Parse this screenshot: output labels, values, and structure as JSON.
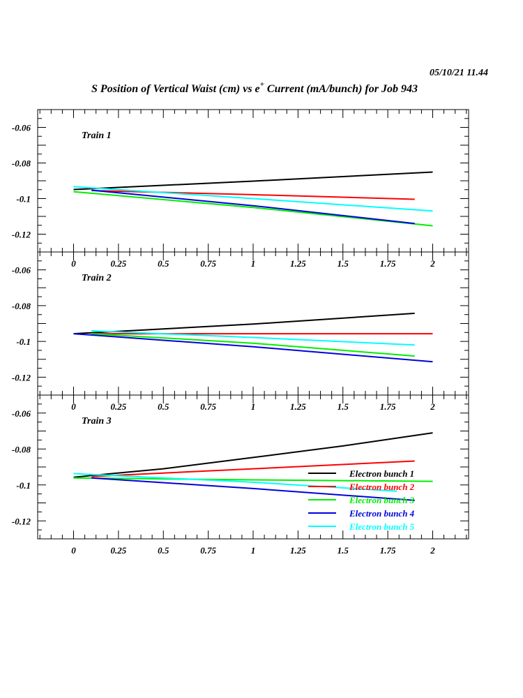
{
  "chart_data": {
    "type": "line",
    "title": "S Position of Vertical Waist (cm) vs e",
    "title_sup": "+",
    "title_rest": " Current (mA/bunch) for Job 943",
    "timestamp": "05/10/21   11.44",
    "xlim": [
      -0.2,
      2.2
    ],
    "ylim": [
      -0.13,
      -0.05
    ],
    "x_ticks": [
      "0",
      "0.25",
      "0.5",
      "0.75",
      "1",
      "1.25",
      "1.5",
      "1.75",
      "2"
    ],
    "x_tick_values": [
      0,
      0.25,
      0.5,
      0.75,
      1,
      1.25,
      1.5,
      1.75,
      2
    ],
    "y_ticks": [
      "-0.06",
      "-0.08",
      "-0.1",
      "-0.12"
    ],
    "y_tick_values": [
      -0.06,
      -0.08,
      -0.1,
      -0.12
    ],
    "grid": false,
    "legend": {
      "placement": "bottom-right of Train 3 panel",
      "entries": [
        "Electron bunch 1",
        "Electron bunch 2",
        "Electron bunch 3",
        "Electron bunch 4",
        "Electron bunch 5"
      ]
    },
    "series_colors": [
      "#000000",
      "#ff0000",
      "#00ee00",
      "#0000dd",
      "#00ffff"
    ],
    "panels": [
      {
        "label": "Train 1",
        "series": [
          {
            "name": "Electron bunch 1",
            "x": [
              0,
              1,
              2
            ],
            "y": [
              -0.0949,
              -0.0902,
              -0.0851
            ]
          },
          {
            "name": "Electron bunch 2",
            "x": [
              0.1,
              1,
              1.9
            ],
            "y": [
              -0.0955,
              -0.0978,
              -0.1004
            ]
          },
          {
            "name": "Electron bunch 3",
            "x": [
              0,
              1,
              2
            ],
            "y": [
              -0.0961,
              -0.105,
              -0.1153
            ]
          },
          {
            "name": "Electron bunch 4",
            "x": [
              0.1,
              1,
              1.9
            ],
            "y": [
              -0.0953,
              -0.104,
              -0.114
            ]
          },
          {
            "name": "Electron bunch 5",
            "x": [
              0,
              1,
              2
            ],
            "y": [
              -0.0933,
              -0.1,
              -0.107
            ]
          }
        ]
      },
      {
        "label": "Train 2",
        "series": [
          {
            "name": "Electron bunch 1",
            "x": [
              0,
              1,
              1.9
            ],
            "y": [
              -0.0957,
              -0.0903,
              -0.0843
            ]
          },
          {
            "name": "Electron bunch 2",
            "x": [
              0.1,
              1,
              2
            ],
            "y": [
              -0.0957,
              -0.0957,
              -0.0957
            ]
          },
          {
            "name": "Electron bunch 3",
            "x": [
              0.1,
              1,
              1.9
            ],
            "y": [
              -0.0957,
              -0.101,
              -0.1082
            ]
          },
          {
            "name": "Electron bunch 4",
            "x": [
              0,
              1,
              2
            ],
            "y": [
              -0.0957,
              -0.103,
              -0.1114
            ]
          },
          {
            "name": "Electron bunch 5",
            "x": [
              0.1,
              1,
              1.9
            ],
            "y": [
              -0.0941,
              -0.0978,
              -0.102
            ]
          }
        ]
      },
      {
        "label": "Train 3",
        "series": [
          {
            "name": "Electron bunch 1",
            "x": [
              0,
              0.5,
              1,
              1.5,
              2
            ],
            "y": [
              -0.0957,
              -0.091,
              -0.0847,
              -0.0783,
              -0.071
            ]
          },
          {
            "name": "Electron bunch 2",
            "x": [
              0.1,
              1,
              1.9
            ],
            "y": [
              -0.0953,
              -0.091,
              -0.0867
            ]
          },
          {
            "name": "Electron bunch 3",
            "x": [
              0,
              1,
              2
            ],
            "y": [
              -0.0961,
              -0.0972,
              -0.098
            ]
          },
          {
            "name": "Electron bunch 4",
            "x": [
              0.1,
              1,
              1.9
            ],
            "y": [
              -0.0961,
              -0.102,
              -0.1086
            ]
          },
          {
            "name": "Electron bunch 5",
            "x": [
              0,
              1,
              1.8
            ],
            "y": [
              -0.0937,
              -0.0985,
              -0.1035
            ]
          }
        ]
      }
    ]
  }
}
